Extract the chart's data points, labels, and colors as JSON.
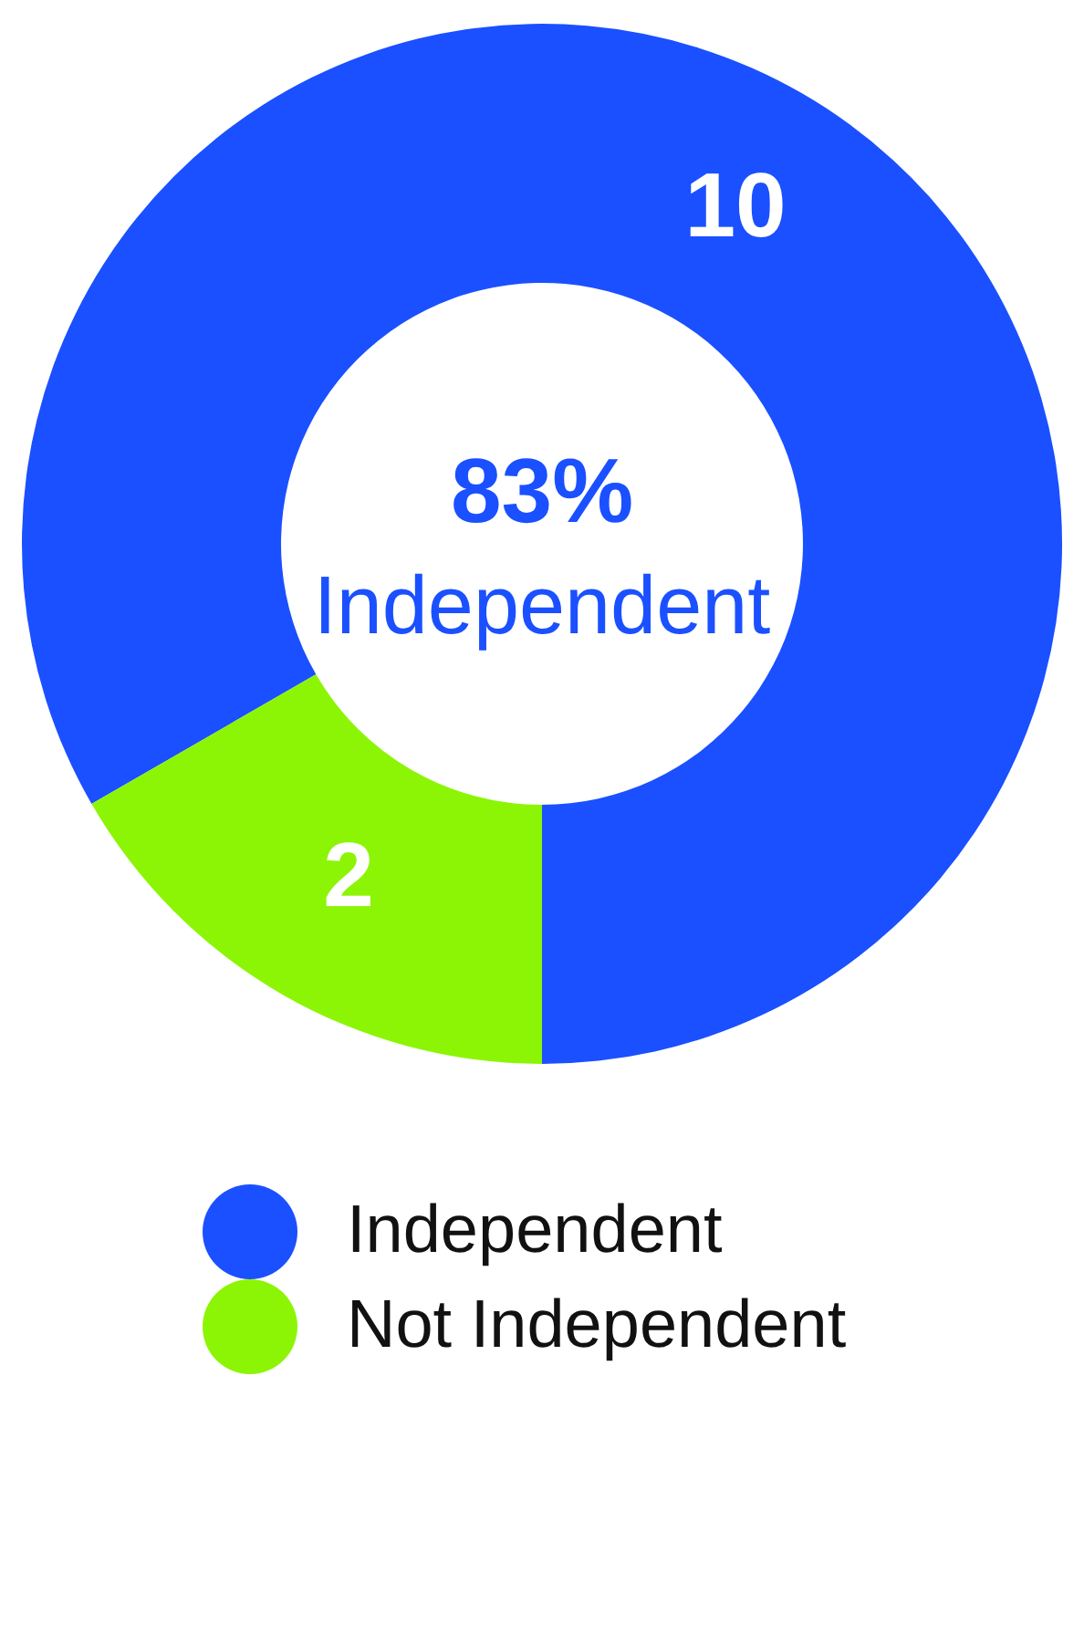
{
  "chart_data": {
    "type": "donut",
    "categories": [
      "Independent",
      "Not Independent"
    ],
    "values": [
      10,
      2
    ],
    "colors": [
      "#1a50ff",
      "#8cf505"
    ],
    "data_labels": true,
    "legend": "bottom",
    "annotations": [
      "83%",
      "Independent"
    ]
  }
}
